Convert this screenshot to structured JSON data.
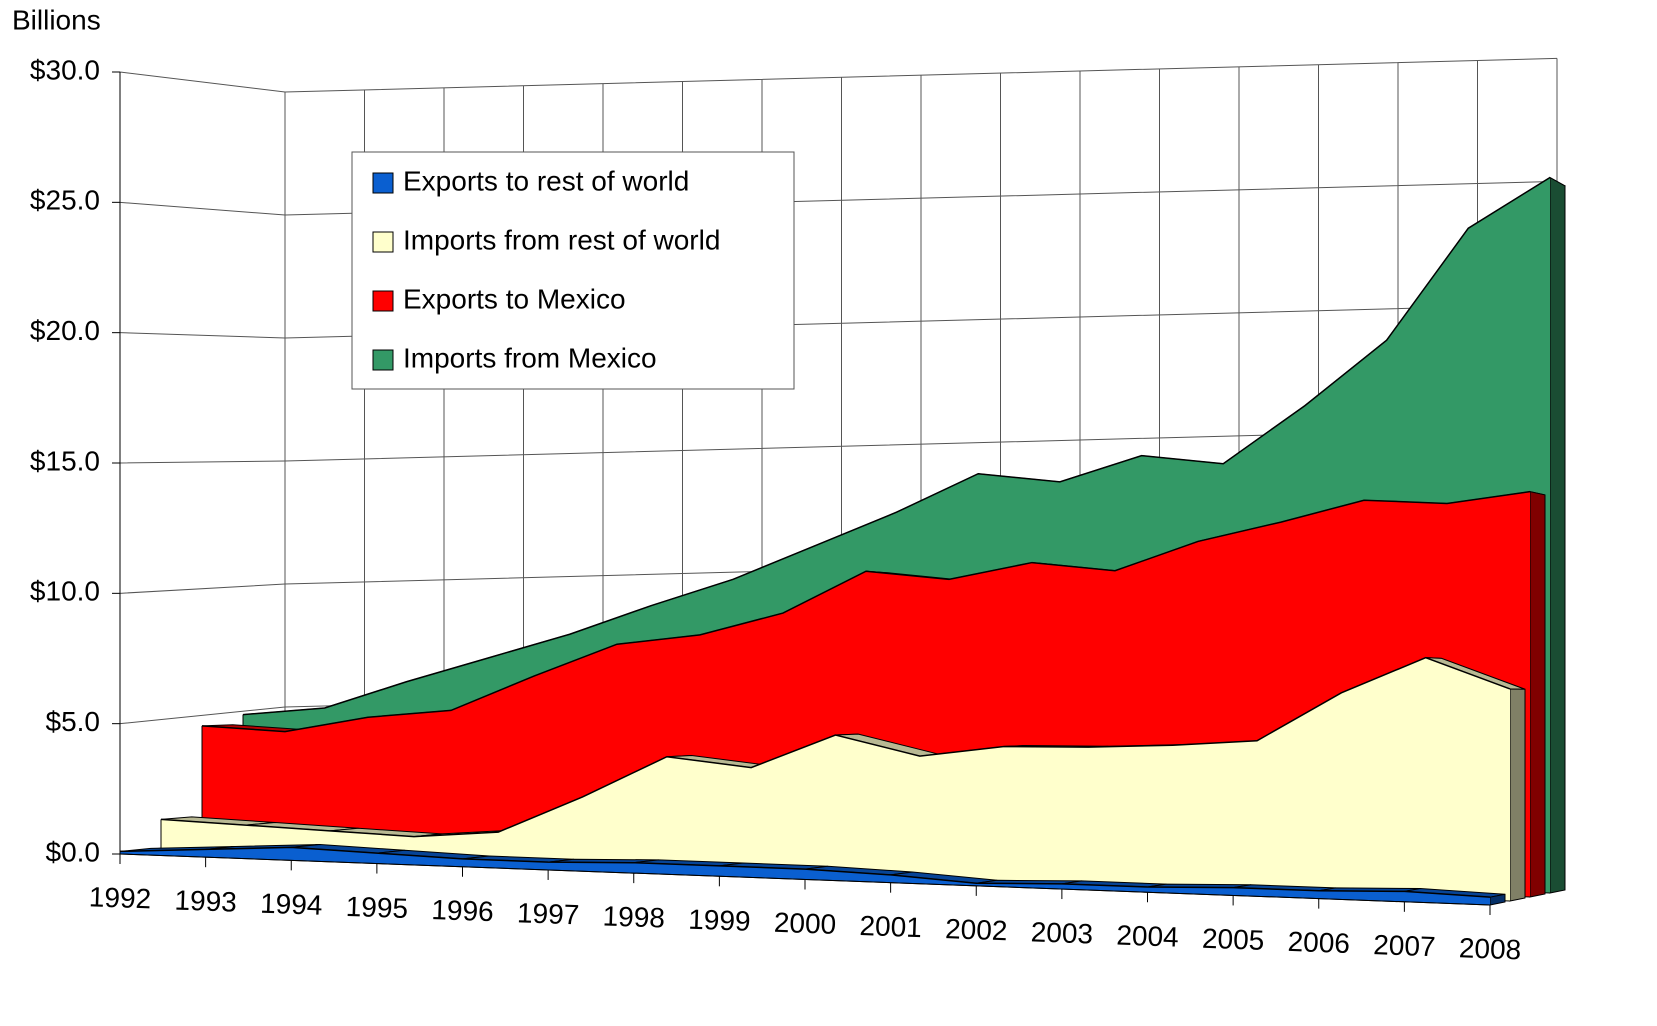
{
  "chart_data": {
    "type": "area3d",
    "y_axis_label": "Billions",
    "categories": [
      "1992",
      "1993",
      "1994",
      "1995",
      "1996",
      "1997",
      "1998",
      "1999",
      "2000",
      "2001",
      "2002",
      "2003",
      "2004",
      "2005",
      "2006",
      "2007",
      "2008"
    ],
    "ylim": [
      0,
      30
    ],
    "yticks": [
      {
        "value": 0,
        "label": "$0.0"
      },
      {
        "value": 5,
        "label": "$5.0"
      },
      {
        "value": 10,
        "label": "$10.0"
      },
      {
        "value": 15,
        "label": "$15.0"
      },
      {
        "value": 20,
        "label": "$20.0"
      },
      {
        "value": 25,
        "label": "$25.0"
      },
      {
        "value": 30,
        "label": "$30.0"
      }
    ],
    "grid": true,
    "legend": "upper left",
    "series": [
      {
        "name": "Exports to rest of world",
        "color": "#0a5fd0",
        "values": [
          0.1,
          0.3,
          0.5,
          0.4,
          0.3,
          0.3,
          0.4,
          0.4,
          0.4,
          0.3,
          0.1,
          0.2,
          0.2,
          0.3,
          0.3,
          0.4,
          0.3
        ]
      },
      {
        "name": "Imports from rest of world",
        "color": "#ffffcc",
        "values": [
          1.2,
          1.1,
          1.0,
          0.9,
          1.2,
          2.7,
          4.4,
          4.1,
          5.5,
          4.8,
          5.3,
          5.4,
          5.6,
          5.9,
          7.9,
          9.4,
          8.3
        ]
      },
      {
        "name": "Exports to Mexico",
        "color": "#ff0000",
        "values": [
          4.8,
          4.7,
          5.4,
          5.8,
          7.3,
          8.7,
          9.2,
          10.2,
          12.0,
          11.8,
          12.6,
          12.4,
          13.7,
          14.6,
          15.6,
          15.6,
          16.2
        ]
      },
      {
        "name": "Imports from Mexico",
        "color": "#339966",
        "values": [
          5.2,
          5.6,
          6.8,
          7.9,
          9.0,
          10.3,
          11.5,
          13.0,
          14.5,
          16.2,
          16.0,
          17.2,
          17.0,
          19.5,
          22.3,
          27.0,
          29.2
        ]
      }
    ]
  }
}
